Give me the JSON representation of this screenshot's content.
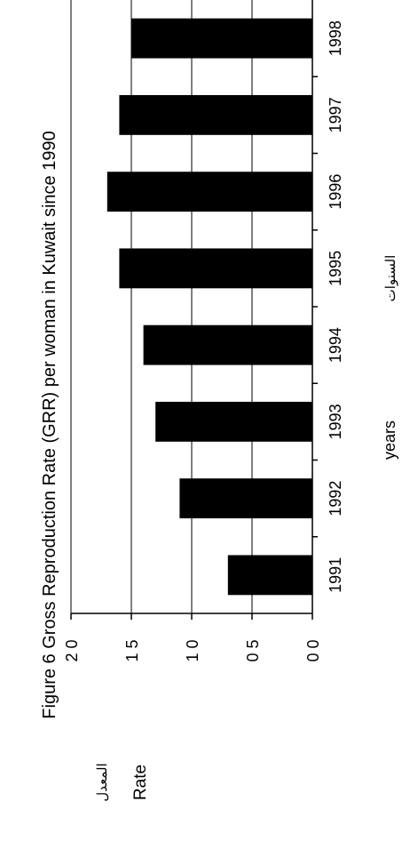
{
  "chart_data": {
    "type": "bar",
    "orientation": "rotated-90-ccw",
    "title": "Figure 6 Gross Reproduction Rate (GRR) per woman in Kuwait since 1990",
    "xlabel": "years",
    "xlabel_ar": "السنوات",
    "ylabel": "Rate",
    "ylabel_ar": "المعدل",
    "categories": [
      "1991",
      "1992",
      "1993",
      "1994",
      "1995",
      "1996",
      "1997",
      "1998"
    ],
    "values": [
      0.7,
      1.1,
      1.3,
      1.4,
      1.6,
      1.7,
      1.6,
      1.5
    ],
    "ylim": [
      0,
      2.0
    ],
    "yticks": [
      "0 0",
      "0 5",
      "1 0",
      "1 5",
      "2 0"
    ],
    "gridlines": true,
    "legend": "none",
    "bar_color": "#000000"
  }
}
